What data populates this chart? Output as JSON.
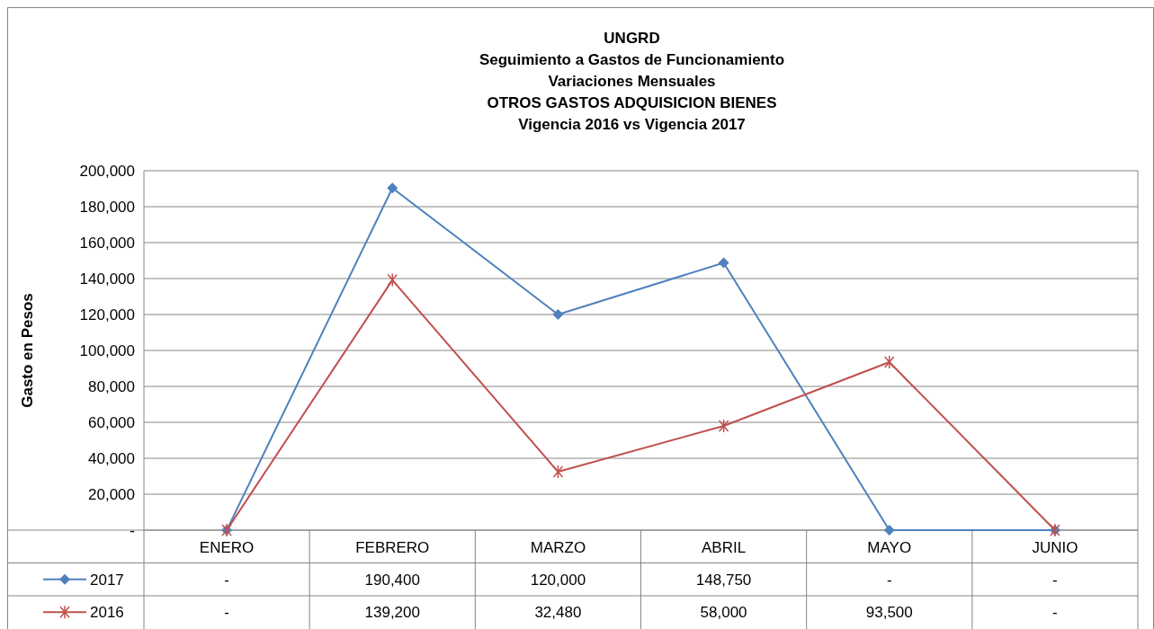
{
  "chart_data": {
    "type": "line",
    "title": "UNGRD\nSeguimiento a Gastos de Funcionamiento\nVariaciones Mensuales\nOTROS GASTOS ADQUISICION BIENES\nVigencia 2016 vs Vigencia 2017",
    "ylabel": "Gasto en Pesos",
    "categories": [
      "ENERO",
      "FEBRERO",
      "MARZO",
      "ABRIL",
      "MAYO",
      "JUNIO"
    ],
    "series": [
      {
        "name": "2017",
        "color": "#4f81bd",
        "marker": "diamond",
        "values": [
          0,
          190400,
          120000,
          148750,
          0,
          0
        ],
        "value_labels": [
          "-",
          "190,400",
          "120,000",
          "148,750",
          "-",
          "-"
        ]
      },
      {
        "name": "2016",
        "color": "#c0504d",
        "marker": "cross",
        "values": [
          0,
          139200,
          32480,
          58000,
          93500,
          0
        ],
        "value_labels": [
          "-",
          "139,200",
          "32,480",
          "58,000",
          "93,500",
          "-"
        ]
      }
    ],
    "ylim": [
      0,
      200000
    ],
    "yticks": [
      {
        "value": 0,
        "label": "-"
      },
      {
        "value": 20000,
        "label": "20,000"
      },
      {
        "value": 40000,
        "label": "40,000"
      },
      {
        "value": 60000,
        "label": "60,000"
      },
      {
        "value": 80000,
        "label": "80,000"
      },
      {
        "value": 100000,
        "label": "100,000"
      },
      {
        "value": 120000,
        "label": "120,000"
      },
      {
        "value": 140000,
        "label": "140,000"
      },
      {
        "value": 160000,
        "label": "160,000"
      },
      {
        "value": 180000,
        "label": "180,000"
      },
      {
        "value": 200000,
        "label": "200,000"
      }
    ],
    "grid": "y",
    "legend": "bottom",
    "line_style": "solid"
  }
}
